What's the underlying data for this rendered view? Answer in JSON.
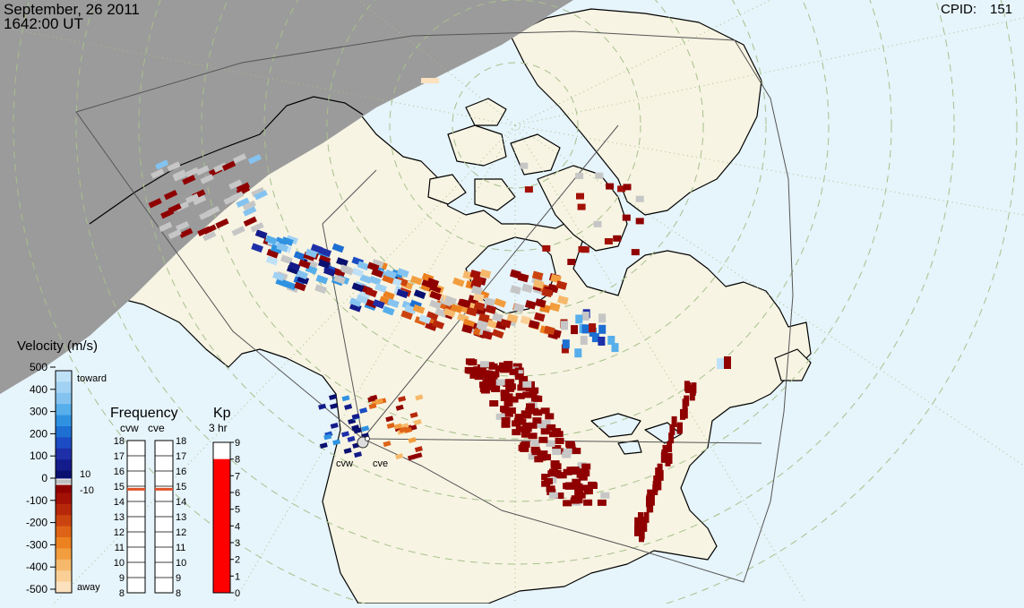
{
  "header": {
    "date": "September, 26 2011",
    "time": "1642:00 UT",
    "cpid_label": "CPID:",
    "cpid_value": "151"
  },
  "colors": {
    "ocean": "#e6f4fb",
    "land": "#f7f4e3",
    "night": "#9b9b9b",
    "grid": "#a8c08c",
    "gray_scatter": "#c6c6c6"
  },
  "velocity_scale": {
    "title": "Velocity (m/s)",
    "ticks": [
      "500",
      "400",
      "300",
      "200",
      "100",
      "0",
      "-100",
      "-200",
      "-300",
      "-400",
      "-500"
    ],
    "toward_label": "toward",
    "away_label": "away",
    "ground_scatter_limits": [
      "10",
      "-10"
    ],
    "colors_top_to_bottom": [
      "#bfe1f7",
      "#a2d2f3",
      "#84c3f0",
      "#56aeeb",
      "#2e92e1",
      "#1d6fd2",
      "#1b4cc3",
      "#1f2fa8",
      "#141b8a",
      "#0a1070",
      "#8f0000",
      "#a31005",
      "#b7280a",
      "#cb4410",
      "#de6316",
      "#ec8120",
      "#f29e3f",
      "#f6b96b",
      "#f9cf96",
      "#fbe1be"
    ]
  },
  "frequency": {
    "title": "Frequency",
    "radars": [
      "cvw",
      "cve"
    ],
    "ticks": [
      "18",
      "17",
      "16",
      "15",
      "14",
      "13",
      "12",
      "11",
      "10",
      "9",
      "8"
    ],
    "values_mhz": [
      14.8,
      14.8
    ],
    "marker_color": "#e0522a"
  },
  "kp": {
    "title": "Kp",
    "subtitle": "3 hr",
    "ticks": [
      "9",
      "8",
      "7",
      "6",
      "5",
      "4",
      "3",
      "2",
      "1",
      "0"
    ],
    "value": 8,
    "bar_color": "#ff0000"
  },
  "radar_sites": [
    {
      "name": "cvw",
      "label": "cvw"
    },
    {
      "name": "cve",
      "label": "cve"
    }
  ]
}
